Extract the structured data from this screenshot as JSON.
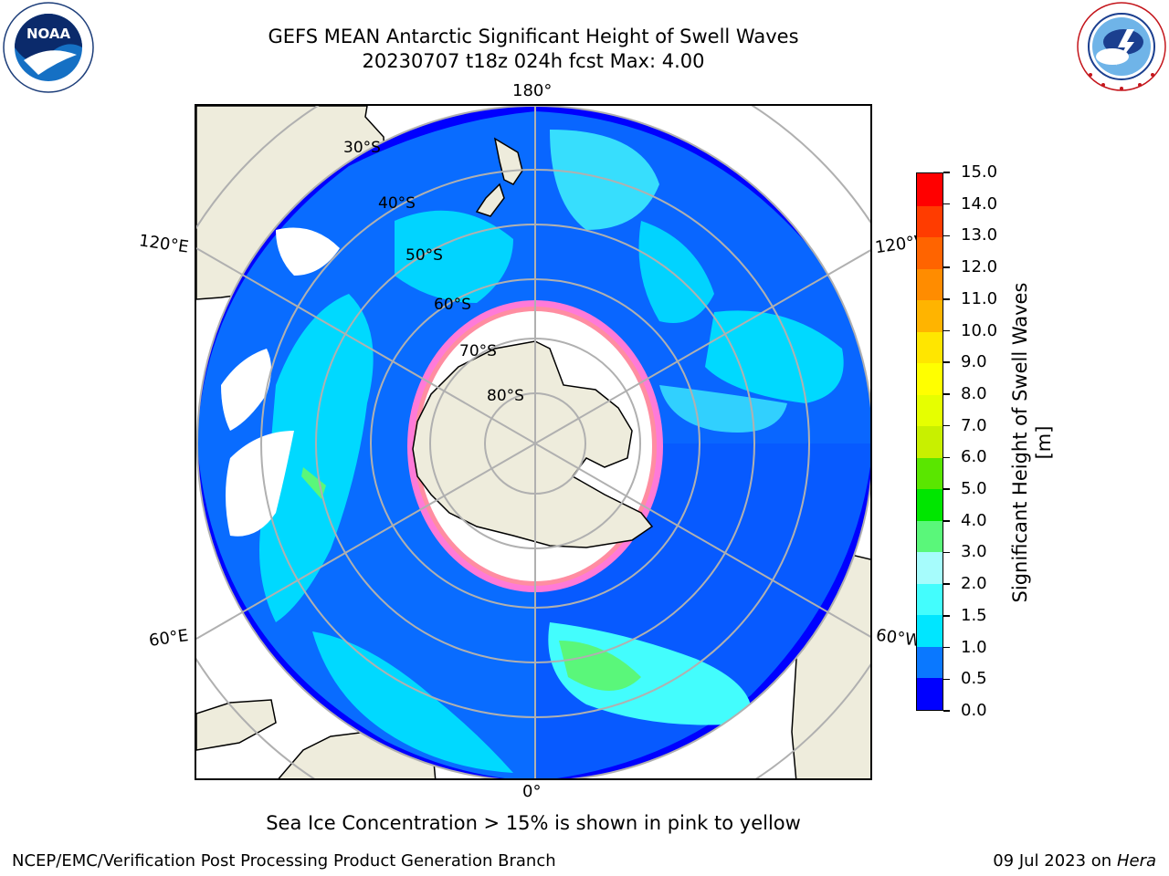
{
  "header": {
    "title_line1": "GEFS MEAN Antarctic Significant Height of Swell Waves",
    "title_line2": "20230707 t18z 024h fcst   Max: 4.00"
  },
  "logos": {
    "noaa": {
      "text": "NOAA",
      "ring_text": "NATIONAL OCEANIC AND ATMOSPHERIC ADMINISTRATION",
      "bottom_text": "U.S. DEPARTMENT OF COMMERCE",
      "icon": "noaa-logo"
    },
    "nws": {
      "ring_text": "NATIONAL WEATHER SERVICE",
      "icon": "nws-logo"
    }
  },
  "map": {
    "projection": "south-polar-stereographic",
    "longitude_labels": {
      "top": "180°",
      "bottom": "0°",
      "upper_left": "120°E",
      "upper_right": "120°W",
      "lower_left": "60°E",
      "lower_right": "60°W"
    },
    "latitude_labels": [
      "30°S",
      "40°S",
      "50°S",
      "60°S",
      "70°S",
      "80°S"
    ],
    "colors": {
      "land": "#eeecdc",
      "ocean_ice": "#ffffff",
      "grid": "#b0b0b0"
    }
  },
  "colorbar": {
    "label": "Significant Height of Swell Waves [m]",
    "ticks": [
      "0.0",
      "0.5",
      "1.0",
      "1.5",
      "2.0",
      "3.0",
      "4.0",
      "5.0",
      "6.0",
      "7.0",
      "8.0",
      "9.0",
      "10.0",
      "11.0",
      "12.0",
      "13.0",
      "14.0",
      "15.0"
    ],
    "colors": [
      "#0000ff",
      "#0a78ff",
      "#00e6ff",
      "#43fdfd",
      "#a6fcfc",
      "#5af77a",
      "#00e600",
      "#5ae600",
      "#c8f000",
      "#e6ff00",
      "#ffff00",
      "#ffe600",
      "#ffb400",
      "#ff8c00",
      "#ff6400",
      "#ff3c00",
      "#ff0000"
    ]
  },
  "footer": {
    "sea_ice_note": "Sea Ice Concentration > 15% is shown in pink to yellow",
    "credit": "NCEP/EMC/Verification Post Processing Product Generation Branch",
    "date_prefix": "09 Jul 2023 on ",
    "machine": "Hera"
  }
}
